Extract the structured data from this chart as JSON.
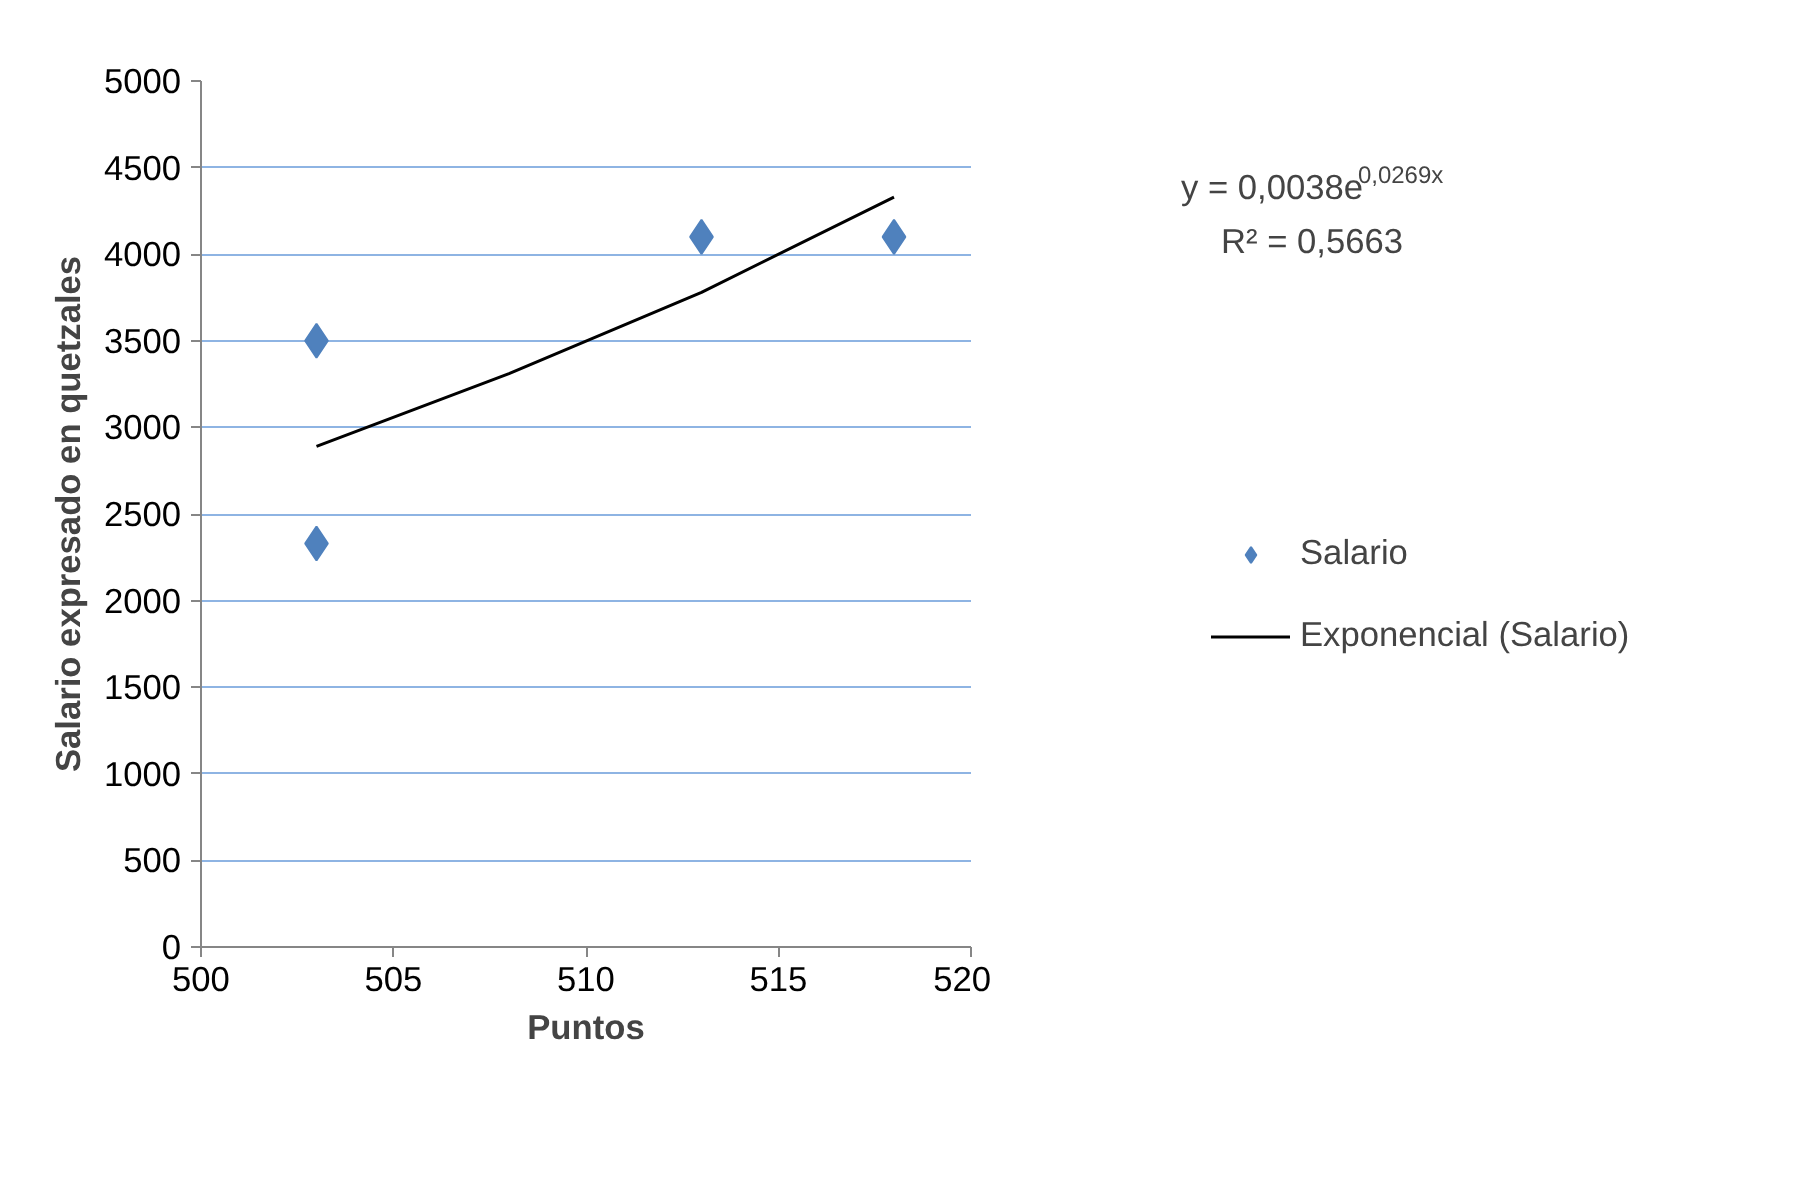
{
  "chart_data": {
    "type": "scatter",
    "xlabel": "Puntos",
    "ylabel": "Salario expresado en quetzales",
    "xlim": [
      500,
      520
    ],
    "xticks": [
      500,
      505,
      510,
      515,
      520
    ],
    "ylim": [
      0,
      5000
    ],
    "yticks": [
      0,
      500,
      1000,
      1500,
      2000,
      2500,
      3000,
      3500,
      4000,
      4500,
      5000
    ],
    "grid": "y",
    "legend": "right",
    "annotations": [
      "y = 0,0038e$^{0,0269x}$",
      "R² = 0,5663"
    ],
    "series": [
      {
        "name": "Salario",
        "type": "scatter",
        "marker": "diamond",
        "color": "#4f81bd",
        "x": [
          503,
          503,
          513,
          518
        ],
        "values": [
          3500,
          2330,
          4100,
          4100
        ]
      },
      {
        "name": "Exponencial (Salario)",
        "type": "line",
        "color": "#000000",
        "line_style": "solid",
        "x": [
          503,
          508,
          513,
          518
        ],
        "values": [
          2890,
          3310,
          3780,
          4330
        ]
      }
    ]
  }
}
